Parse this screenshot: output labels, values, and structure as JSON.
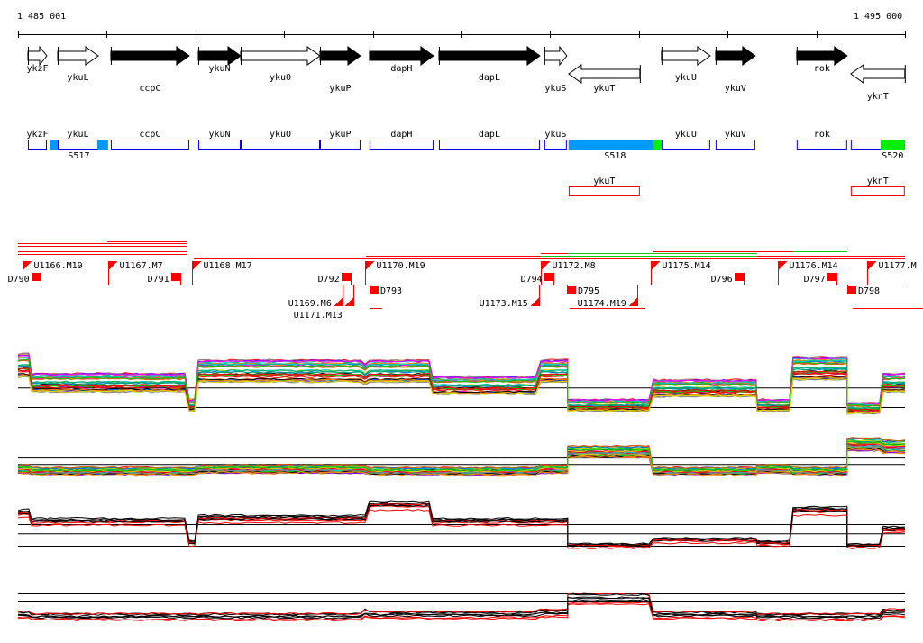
{
  "axis": {
    "start_label": "1 485 001",
    "end_label": "1 495 000",
    "start_bp": 1485001,
    "end_bp": 1495000
  },
  "genes": [
    {
      "name": "ykzF",
      "start": 1485113,
      "end": 1485326,
      "strand": "+",
      "filled": false
    },
    {
      "name": "ykuL",
      "start": 1485448,
      "end": 1485905,
      "strand": "+",
      "filled": false
    },
    {
      "name": "ccpC",
      "start": 1486047,
      "end": 1486931,
      "strand": "+",
      "filled": true
    },
    {
      "name": "ykuN",
      "start": 1487033,
      "end": 1487511,
      "strand": "+",
      "filled": true
    },
    {
      "name": "ykuO",
      "start": 1487511,
      "end": 1488405,
      "strand": "+",
      "filled": false
    },
    {
      "name": "ykuP",
      "start": 1488405,
      "end": 1488862,
      "strand": "+",
      "filled": true
    },
    {
      "name": "dapH",
      "start": 1488963,
      "end": 1489685,
      "strand": "+",
      "filled": true
    },
    {
      "name": "dapL",
      "start": 1489746,
      "end": 1490884,
      "strand": "+",
      "filled": true
    },
    {
      "name": "ykuS",
      "start": 1490934,
      "end": 1491188,
      "strand": "+",
      "filled": false
    },
    {
      "name": "ykuT",
      "start": 1491209,
      "end": 1492011,
      "strand": "-",
      "filled": false
    },
    {
      "name": "ykuU",
      "start": 1492255,
      "end": 1492804,
      "strand": "+",
      "filled": false
    },
    {
      "name": "ykuV",
      "start": 1492865,
      "end": 1493312,
      "strand": "+",
      "filled": true
    },
    {
      "name": "rok",
      "start": 1493779,
      "end": 1494348,
      "strand": "+",
      "filled": true
    },
    {
      "name": "yknT",
      "start": 1494389,
      "end": 1494998,
      "strand": "-",
      "filled": false
    }
  ],
  "segments": [
    {
      "label": "S517",
      "parts": [
        {
          "start": 1485357,
          "end": 1485448,
          "color": "#0099ff"
        },
        {
          "start": 1485895,
          "end": 1486016,
          "color": "#0099ff"
        }
      ]
    },
    {
      "label": "S518",
      "parts": [
        {
          "start": 1491209,
          "end": 1492163,
          "color": "#0099ff"
        },
        {
          "start": 1492163,
          "end": 1492255,
          "color": "#00ee00"
        }
      ]
    },
    {
      "label": "S520",
      "parts": [
        {
          "start": 1494724,
          "end": 1494998,
          "color": "#00ee00"
        }
      ]
    }
  ],
  "antisense": [
    "ykuT",
    "yknT"
  ],
  "transcription_units": [
    {
      "label": "U1166.M19",
      "x_bp": 1485052,
      "above": true
    },
    {
      "label": "U1167.M7",
      "x_bp": 1486016,
      "above": true
    },
    {
      "label": "U1168.M17",
      "x_bp": 1486961,
      "above": true
    },
    {
      "label": "U1170.M19",
      "x_bp": 1488913,
      "above": true
    },
    {
      "label": "U1172.M8",
      "x_bp": 1490894,
      "above": true
    },
    {
      "label": "U1175.M14",
      "x_bp": 1492133,
      "above": true
    },
    {
      "label": "U1176.M14",
      "x_bp": 1493566,
      "above": true
    },
    {
      "label": "U1177.M",
      "x_bp": 1494572,
      "above": true
    },
    {
      "label": "U1169.M6",
      "x_bp": 1488659,
      "above": false
    },
    {
      "label": "U1171.M13",
      "x_bp": 1488781,
      "above": false
    },
    {
      "label": "U1173.M15",
      "x_bp": 1490873,
      "above": false
    },
    {
      "label": "U1174.M19",
      "x_bp": 1491981,
      "above": false
    }
  ],
  "downshifts": [
    {
      "label": "D790",
      "x_bp": 1485255,
      "above": true
    },
    {
      "label": "D791",
      "x_bp": 1486829,
      "above": true
    },
    {
      "label": "D792",
      "x_bp": 1488750,
      "above": true
    },
    {
      "label": "D793",
      "x_bp": 1488964,
      "above": false
    },
    {
      "label": "D794",
      "x_bp": 1491035,
      "above": true
    },
    {
      "label": "D795",
      "x_bp": 1491188,
      "above": false
    },
    {
      "label": "D796",
      "x_bp": 1493180,
      "above": true
    },
    {
      "label": "D797",
      "x_bp": 1494226,
      "above": true
    },
    {
      "label": "D798",
      "x_bp": 1494348,
      "above": false
    }
  ],
  "profiles": {
    "breaks": [
      1485001,
      1485153,
      1485357,
      1486931,
      1487033,
      1488913,
      1488963,
      1489675,
      1490894,
      1491199,
      1492163,
      1493332,
      1493738,
      1494348,
      1494755,
      1495000
    ],
    "panel1": [
      0.85,
      0.55,
      0.55,
      0.15,
      0.75,
      0.7,
      0.75,
      0.5,
      0.75,
      0.15,
      0.45,
      0.15,
      0.8,
      0.1,
      0.55
    ],
    "panel2": [
      0.35,
      0.3,
      0.3,
      0.3,
      0.35,
      0.35,
      0.3,
      0.3,
      0.35,
      0.7,
      0.3,
      0.35,
      0.3,
      0.85,
      0.8
    ],
    "panel3": [
      0.75,
      0.6,
      0.6,
      0.2,
      0.65,
      0.65,
      0.9,
      0.6,
      0.6,
      0.15,
      0.25,
      0.2,
      0.8,
      0.15,
      0.45
    ],
    "panel4": [
      0.3,
      0.25,
      0.25,
      0.25,
      0.25,
      0.35,
      0.3,
      0.3,
      0.35,
      0.75,
      0.3,
      0.25,
      0.25,
      0.25,
      0.35
    ]
  }
}
